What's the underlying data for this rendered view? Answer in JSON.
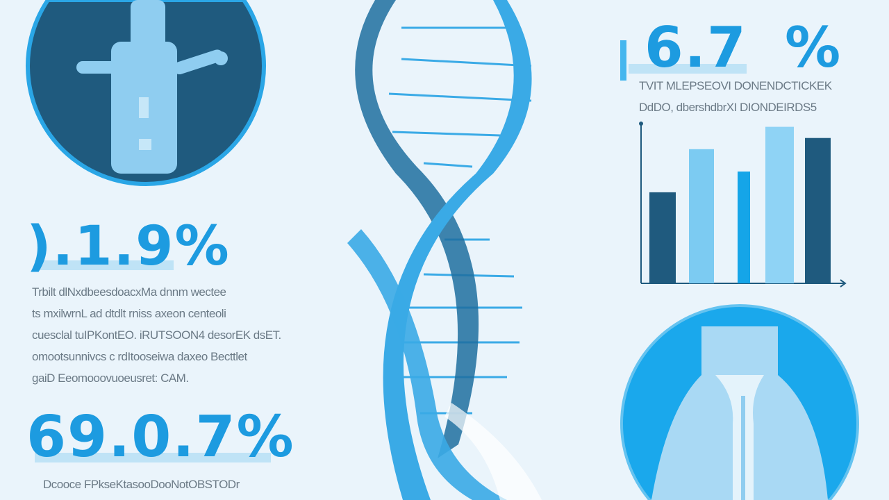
{
  "stats": [
    {
      "value": "6.7",
      "suffix": "%",
      "text": [
        "TVIT MLEPSEOVI DONENDCTICKEK",
        "DdDO, dbershdbrXI DIONDEIRDS5"
      ]
    },
    {
      "value": ").1.9%",
      "text": [
        "Trbilt dlNxdbeesdoacxMa dnnm wectee",
        "ts mxilwrnL ad dtdlt rniss axeon centeoli",
        "cuesclal tuIPKontEO. iRUTSOON4 desorEK dsET.",
        "omootsunnivcs c rdItooseiwa daxeo Becttlet",
        "gaiD Eeomooovuoeusret: CAM."
      ]
    },
    {
      "value": "69.0.7%",
      "text": [
        "Dcooce FPkseKtasooDooNotOBSTODr"
      ]
    }
  ],
  "colors": {
    "accent": "#1d9be0",
    "dark": "#1f5a7e",
    "light": "#8fd0f3",
    "background": "#eaf4fb"
  },
  "icons": {
    "top_left": "human-figure-icon",
    "bottom_right": "spine-icon",
    "center": "dna-helix-icon"
  },
  "chart_data": {
    "type": "bar",
    "categories": [
      "",
      "",
      "",
      "",
      ""
    ],
    "values": [
      57,
      84,
      70,
      98,
      91
    ],
    "colors": [
      "#1f5a7e",
      "#7ccbf2",
      "#15a5e8",
      "#8fd3f5",
      "#1f5a7e"
    ],
    "ylim": [
      0,
      100
    ],
    "grid": false,
    "title": "",
    "xlabel": "",
    "ylabel": ""
  }
}
